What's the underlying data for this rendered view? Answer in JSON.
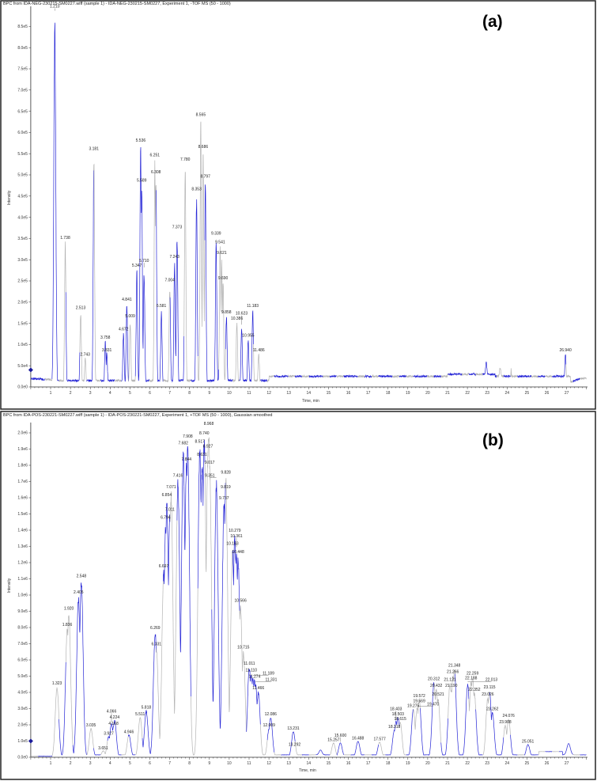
{
  "chart_data": [
    {
      "type": "line",
      "panel_label": "(a)",
      "title": "BPC from IDA-NEG-230215-SM0227.wiff (sample 1) - IDA-NEG-230215-SM0227, Experiment 1, -TOF MS (50 - 1000)",
      "xlabel": "Time, min",
      "ylabel": "Intensity",
      "xlim": [
        0,
        28
      ],
      "ylim": [
        0,
        890000
      ],
      "x_ticks": [
        "1",
        "2",
        "3",
        "4",
        "5",
        "6",
        "7",
        "8",
        "9",
        "10",
        "11",
        "12",
        "13",
        "14",
        "15",
        "16",
        "17",
        "18",
        "19",
        "20",
        "21",
        "22",
        "23",
        "24",
        "25",
        "26",
        "27"
      ],
      "y_ticks": [
        {
          "label": "0.0e0",
          "value": 0
        },
        {
          "label": "5.0e4",
          "value": 50000
        },
        {
          "label": "1.0e5",
          "value": 100000
        },
        {
          "label": "1.5e5",
          "value": 150000
        },
        {
          "label": "2.0e5",
          "value": 200000
        },
        {
          "label": "2.5e5",
          "value": 250000
        },
        {
          "label": "3.0e5",
          "value": 300000
        },
        {
          "label": "3.5e5",
          "value": 350000
        },
        {
          "label": "4.0e5",
          "value": 400000
        },
        {
          "label": "4.5e5",
          "value": 450000
        },
        {
          "label": "5.0e5",
          "value": 500000
        },
        {
          "label": "5.5e5",
          "value": 550000
        },
        {
          "label": "6.0e5",
          "value": 600000
        },
        {
          "label": "6.5e5",
          "value": 650000
        },
        {
          "label": "7.0e5",
          "value": 700000
        },
        {
          "label": "7.5e5",
          "value": 750000
        },
        {
          "label": "8.0e5",
          "value": 800000
        },
        {
          "label": "8.5e5",
          "value": 850000
        }
      ],
      "peaks": [
        {
          "label": "1.210",
          "rt": 1.21,
          "intensity": 885000
        },
        {
          "label": "1.738",
          "rt": 1.738,
          "intensity": 345000
        },
        {
          "label": "2.513",
          "rt": 2.513,
          "intensity": 180000
        },
        {
          "label": "2.743",
          "rt": 2.743,
          "intensity": 70000
        },
        {
          "label": "3.181",
          "rt": 3.181,
          "intensity": 555000
        },
        {
          "label": "3.758",
          "rt": 3.758,
          "intensity": 110000
        },
        {
          "label": "3.831",
          "rt": 3.831,
          "intensity": 80000
        },
        {
          "label": "4.672",
          "rt": 4.672,
          "intensity": 130000
        },
        {
          "label": "4.841",
          "rt": 4.841,
          "intensity": 200000
        },
        {
          "label": "5.009",
          "rt": 5.009,
          "intensity": 160000
        },
        {
          "label": "5.347",
          "rt": 5.347,
          "intensity": 280000
        },
        {
          "label": "5.536",
          "rt": 5.536,
          "intensity": 575000
        },
        {
          "label": "5.589",
          "rt": 5.589,
          "intensity": 480000
        },
        {
          "label": "5.710",
          "rt": 5.71,
          "intensity": 280000
        },
        {
          "label": "6.251",
          "rt": 6.251,
          "intensity": 540000
        },
        {
          "label": "6.308",
          "rt": 6.308,
          "intensity": 500000
        },
        {
          "label": "6.581",
          "rt": 6.581,
          "intensity": 185000
        },
        {
          "label": "7.004",
          "rt": 7.004,
          "intensity": 245000
        },
        {
          "label": "7.243",
          "rt": 7.243,
          "intensity": 300000
        },
        {
          "label": "7.373",
          "rt": 7.373,
          "intensity": 370000
        },
        {
          "label": "7.780",
          "rt": 7.78,
          "intensity": 530000
        },
        {
          "label": "8.353",
          "rt": 8.353,
          "intensity": 460000
        },
        {
          "label": "8.565",
          "rt": 8.565,
          "intensity": 635000
        },
        {
          "label": "8.686",
          "rt": 8.686,
          "intensity": 560000
        },
        {
          "label": "8.797",
          "rt": 8.797,
          "intensity": 490000
        },
        {
          "label": "9.339",
          "rt": 9.339,
          "intensity": 355000
        },
        {
          "label": "9.541",
          "rt": 9.541,
          "intensity": 335000
        },
        {
          "label": "9.621",
          "rt": 9.621,
          "intensity": 310000
        },
        {
          "label": "9.690",
          "rt": 9.69,
          "intensity": 250000
        },
        {
          "label": "9.858",
          "rt": 9.858,
          "intensity": 170000
        },
        {
          "label": "10.386",
          "rt": 10.386,
          "intensity": 155000
        },
        {
          "label": "10.623",
          "rt": 10.623,
          "intensity": 145000
        },
        {
          "label": "10.955",
          "rt": 10.955,
          "intensity": 115000
        },
        {
          "label": "11.183",
          "rt": 11.183,
          "intensity": 185000
        },
        {
          "label": "11.486",
          "rt": 11.486,
          "intensity": 80000
        },
        {
          "label": "26.940",
          "rt": 26.94,
          "intensity": 80000
        }
      ]
    },
    {
      "type": "line",
      "panel_label": "(b)",
      "title": "BPC from IDA-POS-230221-SM0227.wiff (sample 1) - IDA-POS-230221-SM0227, Experiment 1, +TOF MS (50 - 1000), Gaussian smoothed",
      "xlabel": "Time, min",
      "ylabel": "Intensity",
      "xlim": [
        0,
        28
      ],
      "ylim": [
        0,
        2050000
      ],
      "x_ticks": [
        "1",
        "2",
        "3",
        "4",
        "5",
        "6",
        "7",
        "8",
        "9",
        "10",
        "11",
        "12",
        "13",
        "14",
        "15",
        "16",
        "17",
        "18",
        "19",
        "20",
        "21",
        "22",
        "23",
        "24",
        "25",
        "26",
        "27"
      ],
      "y_ticks": [
        {
          "label": "0.0e0",
          "value": 0
        },
        {
          "label": "1.0e5",
          "value": 100000
        },
        {
          "label": "2.0e5",
          "value": 200000
        },
        {
          "label": "3.0e5",
          "value": 300000
        },
        {
          "label": "4.0e5",
          "value": 400000
        },
        {
          "label": "5.0e5",
          "value": 500000
        },
        {
          "label": "6.0e5",
          "value": 600000
        },
        {
          "label": "7.0e5",
          "value": 700000
        },
        {
          "label": "8.0e5",
          "value": 800000
        },
        {
          "label": "9.0e5",
          "value": 900000
        },
        {
          "label": "1.0e6",
          "value": 1000000
        },
        {
          "label": "1.1e6",
          "value": 1100000
        },
        {
          "label": "1.2e6",
          "value": 1200000
        },
        {
          "label": "1.3e6",
          "value": 1300000
        },
        {
          "label": "1.4e6",
          "value": 1400000
        },
        {
          "label": "1.5e6",
          "value": 1500000
        },
        {
          "label": "1.6e6",
          "value": 1600000
        },
        {
          "label": "1.7e6",
          "value": 1700000
        },
        {
          "label": "1.8e6",
          "value": 1800000
        },
        {
          "label": "1.9e6",
          "value": 1900000
        },
        {
          "label": "2.0e6",
          "value": 2000000
        }
      ],
      "peaks": [
        {
          "label": "1.323",
          "rt": 1.323,
          "intensity": 440000
        },
        {
          "label": "1.836",
          "rt": 1.836,
          "intensity": 800000
        },
        {
          "label": "1.920",
          "rt": 1.92,
          "intensity": 900000
        },
        {
          "label": "2.405",
          "rt": 2.405,
          "intensity": 1000000
        },
        {
          "label": "2.548",
          "rt": 2.548,
          "intensity": 1100000
        },
        {
          "label": "3.035",
          "rt": 3.035,
          "intensity": 180000
        },
        {
          "label": "3.651",
          "rt": 3.651,
          "intensity": 40000
        },
        {
          "label": "3.927",
          "rt": 3.927,
          "intensity": 130000
        },
        {
          "label": "4.066",
          "rt": 4.066,
          "intensity": 210000
        },
        {
          "label": "4.168",
          "rt": 4.168,
          "intensity": 190000
        },
        {
          "label": "4.224",
          "rt": 4.224,
          "intensity": 230000
        },
        {
          "label": "4.946",
          "rt": 4.946,
          "intensity": 140000
        },
        {
          "label": "5.511",
          "rt": 5.511,
          "intensity": 250000
        },
        {
          "label": "5.818",
          "rt": 5.818,
          "intensity": 290000
        },
        {
          "label": "6.269",
          "rt": 6.269,
          "intensity": 780000
        },
        {
          "label": "6.331",
          "rt": 6.331,
          "intensity": 680000
        },
        {
          "label": "6.697",
          "rt": 6.697,
          "intensity": 1160000
        },
        {
          "label": "6.794",
          "rt": 6.794,
          "intensity": 1460000
        },
        {
          "label": "6.854",
          "rt": 6.854,
          "intensity": 1600000
        },
        {
          "label": "7.011",
          "rt": 7.011,
          "intensity": 1510000
        },
        {
          "label": "7.071",
          "rt": 7.071,
          "intensity": 1650000
        },
        {
          "label": "7.416",
          "rt": 7.416,
          "intensity": 1720000
        },
        {
          "label": "7.844",
          "rt": 7.844,
          "intensity": 1820000
        },
        {
          "label": "7.682",
          "rt": 7.682,
          "intensity": 1920000
        },
        {
          "label": "7.908",
          "rt": 7.908,
          "intensity": 1960000
        },
        {
          "label": "8.517",
          "rt": 8.517,
          "intensity": 1930000
        },
        {
          "label": "8.631",
          "rt": 8.631,
          "intensity": 1850000
        },
        {
          "label": "8.740",
          "rt": 8.74,
          "intensity": 1980000
        },
        {
          "label": "8.968",
          "rt": 8.968,
          "intensity": 2040000
        },
        {
          "label": "8.927",
          "rt": 8.927,
          "intensity": 1900000
        },
        {
          "label": "9.017",
          "rt": 9.017,
          "intensity": 1800000
        },
        {
          "label": "9.351",
          "rt": 9.351,
          "intensity": 1720000
        },
        {
          "label": "9.828",
          "rt": 9.828,
          "intensity": 1740000
        },
        {
          "label": "9.819",
          "rt": 9.819,
          "intensity": 1650000
        },
        {
          "label": "9.737",
          "rt": 9.737,
          "intensity": 1580000
        },
        {
          "label": "10.279",
          "rt": 10.279,
          "intensity": 1380000
        },
        {
          "label": "10.163",
          "rt": 10.163,
          "intensity": 1300000
        },
        {
          "label": "10.361",
          "rt": 10.361,
          "intensity": 1290000
        },
        {
          "label": "10.448",
          "rt": 10.448,
          "intensity": 1250000
        },
        {
          "label": "10.566",
          "rt": 10.566,
          "intensity": 950000
        },
        {
          "label": "10.715",
          "rt": 10.715,
          "intensity": 660000
        },
        {
          "label": "11.011",
          "rt": 11.011,
          "intensity": 560000
        },
        {
          "label": "11.110",
          "rt": 11.11,
          "intensity": 520000
        },
        {
          "label": "11.189",
          "rt": 11.189,
          "intensity": 500000
        },
        {
          "label": "11.274",
          "rt": 11.274,
          "intensity": 480000
        },
        {
          "label": "11.331",
          "rt": 11.331,
          "intensity": 460000
        },
        {
          "label": "11.466",
          "rt": 11.466,
          "intensity": 410000
        },
        {
          "label": "12.086",
          "rt": 12.086,
          "intensity": 250000
        },
        {
          "label": "12.009",
          "rt": 12.009,
          "intensity": 180000
        },
        {
          "label": "13.231",
          "rt": 13.231,
          "intensity": 160000
        },
        {
          "label": "13.292",
          "rt": 13.292,
          "intensity": 60000
        },
        {
          "label": "15.257",
          "rt": 15.257,
          "intensity": 90000
        },
        {
          "label": "15.600",
          "rt": 15.6,
          "intensity": 90000
        },
        {
          "label": "16.488",
          "rt": 16.488,
          "intensity": 100000
        },
        {
          "label": "17.577",
          "rt": 17.577,
          "intensity": 95000
        },
        {
          "label": "18.318",
          "rt": 18.318,
          "intensity": 170000
        },
        {
          "label": "18.403",
          "rt": 18.403,
          "intensity": 225000
        },
        {
          "label": "18.503",
          "rt": 18.503,
          "intensity": 250000
        },
        {
          "label": "18.615",
          "rt": 18.615,
          "intensity": 220000
        },
        {
          "label": "19.275",
          "rt": 19.275,
          "intensity": 300000
        },
        {
          "label": "19.569",
          "rt": 19.569,
          "intensity": 330000
        },
        {
          "label": "19.572",
          "rt": 19.572,
          "intensity": 360000
        },
        {
          "label": "19.470",
          "rt": 19.47,
          "intensity": 310000
        },
        {
          "label": "20.312",
          "rt": 20.312,
          "intensity": 465000
        },
        {
          "label": "20.432",
          "rt": 20.432,
          "intensity": 425000
        },
        {
          "label": "20.521",
          "rt": 20.521,
          "intensity": 370000
        },
        {
          "label": "21.121",
          "rt": 21.121,
          "intensity": 460000
        },
        {
          "label": "21.266",
          "rt": 21.266,
          "intensity": 510000
        },
        {
          "label": "21.348",
          "rt": 21.348,
          "intensity": 550000
        },
        {
          "label": "21.190",
          "rt": 21.19,
          "intensity": 425000
        },
        {
          "label": "22.013",
          "rt": 22.013,
          "intensity": 460000
        },
        {
          "label": "22.259",
          "rt": 22.259,
          "intensity": 500000
        },
        {
          "label": "22.188",
          "rt": 22.188,
          "intensity": 470000
        },
        {
          "label": "22.352",
          "rt": 22.352,
          "intensity": 400000
        },
        {
          "label": "23.115",
          "rt": 23.115,
          "intensity": 415000
        },
        {
          "label": "23.026",
          "rt": 23.026,
          "intensity": 370000
        },
        {
          "label": "23.262",
          "rt": 23.262,
          "intensity": 280000
        },
        {
          "label": "24.076",
          "rt": 24.076,
          "intensity": 240000
        },
        {
          "label": "23.908",
          "rt": 23.908,
          "intensity": 200000
        },
        {
          "label": "25.051",
          "rt": 25.051,
          "intensity": 80000
        }
      ]
    }
  ],
  "colors": {
    "trace_primary": "#2626d6",
    "trace_secondary": "#b4b4b4",
    "axis": "#333333",
    "marker": "#1a1a9a"
  }
}
